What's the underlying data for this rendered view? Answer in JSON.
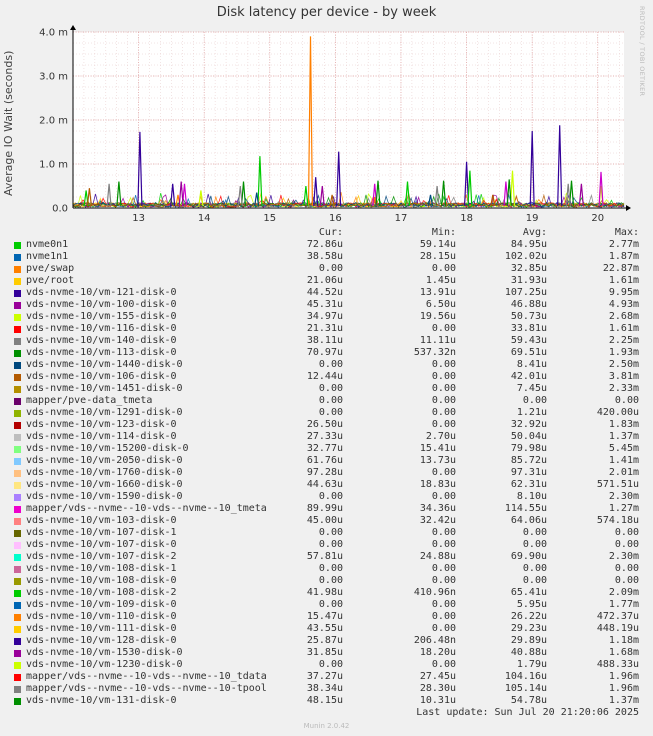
{
  "title": "Disk latency per device - by week",
  "ylabel": "Average IO Wait (seconds)",
  "watermark": "RRDTOOL / TOBI OETIKER",
  "chart_data": {
    "type": "line",
    "title": "Disk latency per device - by week",
    "ylabel": "Average IO Wait (seconds)",
    "ylim": [
      0,
      4.0
    ],
    "y_unit": "m",
    "y_ticks": [
      "0.0",
      "1.0 m",
      "2.0 m",
      "3.0 m",
      "4.0 m"
    ],
    "y_tick_values": [
      0,
      1,
      2,
      3,
      4
    ],
    "x_ticks": [
      "13",
      "14",
      "15",
      "16",
      "17",
      "18",
      "19",
      "20"
    ],
    "xlim": [
      12.0,
      20.4
    ],
    "grid": true,
    "spikes": [
      {
        "series": "pve/swap",
        "color": "#ff7f00",
        "points": [
          [
            15.62,
            3.9
          ],
          [
            13.6,
            0.3
          ],
          [
            16.6,
            0.25
          ]
        ]
      },
      {
        "series": "vds-nvme-10/vm-121-disk-0",
        "color": "#330099",
        "points": [
          [
            13.02,
            1.73
          ],
          [
            19.0,
            1.75
          ],
          [
            19.42,
            1.88
          ],
          [
            16.05,
            1.28
          ],
          [
            18.0,
            1.05
          ],
          [
            13.52,
            0.55
          ],
          [
            15.7,
            0.7
          ]
        ]
      },
      {
        "series": "vds-nvme-10/vm-155-disk-0",
        "color": "#ccff00",
        "points": [
          [
            18.7,
            0.85
          ],
          [
            13.95,
            0.4
          ],
          [
            20.05,
            0.5
          ]
        ]
      },
      {
        "series": "nvme0n1",
        "color": "#00cc00",
        "points": [
          [
            14.85,
            1.18
          ],
          [
            15.55,
            0.5
          ],
          [
            18.05,
            0.85
          ],
          [
            17.1,
            0.6
          ],
          [
            12.2,
            0.4
          ]
        ]
      },
      {
        "series": "mapper/vds--nvme--10-vds--nvme--10_tmeta",
        "color": "#cc00cc",
        "points": [
          [
            20.05,
            0.82
          ],
          [
            16.6,
            0.55
          ],
          [
            13.7,
            0.55
          ],
          [
            18.6,
            0.6
          ]
        ]
      },
      {
        "series": "vds-nvme-10/vm-113-disk-0",
        "color": "#008f00",
        "points": [
          [
            14.6,
            0.6
          ],
          [
            16.65,
            0.62
          ],
          [
            17.65,
            0.62
          ],
          [
            18.65,
            0.65
          ],
          [
            19.6,
            0.62
          ],
          [
            12.7,
            0.6
          ]
        ]
      },
      {
        "series": "vds-nvme-10/vm-1440-disk-0",
        "color": "#00487d",
        "points": [
          [
            14.8,
            0.35
          ],
          [
            17.45,
            0.3
          ]
        ]
      },
      {
        "series": "vds-nvme-10/vm-100-disk-0",
        "color": "#990099",
        "points": [
          [
            13.65,
            0.6
          ],
          [
            15.8,
            0.5
          ],
          [
            19.75,
            0.55
          ]
        ]
      },
      {
        "series": "vds-nvme-10/vm-140-disk-0",
        "color": "#808080",
        "points": [
          [
            12.55,
            0.55
          ],
          [
            14.55,
            0.5
          ],
          [
            17.55,
            0.5
          ],
          [
            19.55,
            0.55
          ]
        ]
      },
      {
        "series": "vds-nvme-10/vm-106-disk-0",
        "color": "#b35a00",
        "points": [
          [
            12.25,
            0.45
          ],
          [
            15.95,
            0.3
          ],
          [
            18.4,
            0.3
          ]
        ]
      }
    ],
    "series": [
      {
        "name": "nvme0n1",
        "color": "#00cc00",
        "cur": "72.86u",
        "min": "59.14u",
        "avg": "84.95u",
        "max": "2.77m"
      },
      {
        "name": "nvme1n1",
        "color": "#0066b3",
        "cur": "38.58u",
        "min": "28.15u",
        "avg": "102.02u",
        "max": "1.87m"
      },
      {
        "name": "pve/swap",
        "color": "#ff8000",
        "cur": "0.00",
        "min": "0.00",
        "avg": "32.85u",
        "max": "22.87m"
      },
      {
        "name": "pve/root",
        "color": "#ffcc00",
        "cur": "21.06u",
        "min": "1.45u",
        "avg": "31.93u",
        "max": "1.61m"
      },
      {
        "name": "vds-nvme-10/vm-121-disk-0",
        "color": "#330099",
        "cur": "44.52u",
        "min": "13.91u",
        "avg": "107.25u",
        "max": "9.95m"
      },
      {
        "name": "vds-nvme-10/vm-100-disk-0",
        "color": "#990099",
        "cur": "45.31u",
        "min": "6.50u",
        "avg": "46.88u",
        "max": "4.93m"
      },
      {
        "name": "vds-nvme-10/vm-155-disk-0",
        "color": "#ccff00",
        "cur": "34.97u",
        "min": "19.56u",
        "avg": "50.73u",
        "max": "2.68m"
      },
      {
        "name": "vds-nvme-10/vm-116-disk-0",
        "color": "#ff0000",
        "cur": "21.31u",
        "min": "0.00",
        "avg": "33.81u",
        "max": "1.61m"
      },
      {
        "name": "vds-nvme-10/vm-140-disk-0",
        "color": "#808080",
        "cur": "38.11u",
        "min": "11.11u",
        "avg": "59.43u",
        "max": "2.25m"
      },
      {
        "name": "vds-nvme-10/vm-113-disk-0",
        "color": "#008f00",
        "cur": "70.97u",
        "min": "537.32n",
        "avg": "69.51u",
        "max": "1.93m"
      },
      {
        "name": "vds-nvme-10/vm-1440-disk-0",
        "color": "#00487d",
        "cur": "0.00",
        "min": "0.00",
        "avg": "8.41u",
        "max": "2.50m"
      },
      {
        "name": "vds-nvme-10/vm-106-disk-0",
        "color": "#b35a00",
        "cur": "12.44u",
        "min": "0.00",
        "avg": "42.01u",
        "max": "3.81m"
      },
      {
        "name": "vds-nvme-10/vm-1451-disk-0",
        "color": "#b38f00",
        "cur": "0.00",
        "min": "0.00",
        "avg": "7.45u",
        "max": "2.33m"
      },
      {
        "name": "mapper/pve-data_tmeta",
        "color": "#6b006b",
        "cur": "0.00",
        "min": "0.00",
        "avg": "0.00",
        "max": "0.00"
      },
      {
        "name": "vds-nvme-10/vm-1291-disk-0",
        "color": "#8fb300",
        "cur": "0.00",
        "min": "0.00",
        "avg": "1.21u",
        "max": "420.00u"
      },
      {
        "name": "vds-nvme-10/vm-123-disk-0",
        "color": "#b30000",
        "cur": "26.50u",
        "min": "0.00",
        "avg": "32.92u",
        "max": "1.83m"
      },
      {
        "name": "vds-nvme-10/vm-114-disk-0",
        "color": "#bebebe",
        "cur": "27.33u",
        "min": "2.70u",
        "avg": "50.04u",
        "max": "1.37m"
      },
      {
        "name": "vds-nvme-10/vm-15200-disk-0",
        "color": "#80ff80",
        "cur": "32.77u",
        "min": "15.41u",
        "avg": "79.98u",
        "max": "5.45m"
      },
      {
        "name": "vds-nvme-10/vm-2050-disk-0",
        "color": "#80c9ff",
        "cur": "61.76u",
        "min": "13.73u",
        "avg": "85.72u",
        "max": "1.41m"
      },
      {
        "name": "vds-nvme-10/vm-1760-disk-0",
        "color": "#ffc080",
        "cur": "97.28u",
        "min": "0.00",
        "avg": "97.31u",
        "max": "2.01m"
      },
      {
        "name": "vds-nvme-10/vm-1660-disk-0",
        "color": "#ffe680",
        "cur": "44.63u",
        "min": "18.83u",
        "avg": "62.31u",
        "max": "571.51u"
      },
      {
        "name": "vds-nvme-10/vm-1590-disk-0",
        "color": "#aa80ff",
        "cur": "0.00",
        "min": "0.00",
        "avg": "8.10u",
        "max": "2.30m"
      },
      {
        "name": "mapper/vds--nvme--10-vds--nvme--10_tmeta",
        "color": "#ee00cc",
        "cur": "89.99u",
        "min": "34.36u",
        "avg": "114.55u",
        "max": "1.27m"
      },
      {
        "name": "vds-nvme-10/vm-103-disk-0",
        "color": "#ff8080",
        "cur": "45.00u",
        "min": "32.42u",
        "avg": "64.06u",
        "max": "574.18u"
      },
      {
        "name": "vds-nvme-10/vm-107-disk-1",
        "color": "#666600",
        "cur": "0.00",
        "min": "0.00",
        "avg": "0.00",
        "max": "0.00"
      },
      {
        "name": "vds-nvme-10/vm-107-disk-0",
        "color": "#ffbfff",
        "cur": "0.00",
        "min": "0.00",
        "avg": "0.00",
        "max": "0.00"
      },
      {
        "name": "vds-nvme-10/vm-107-disk-2",
        "color": "#00ffcc",
        "cur": "57.81u",
        "min": "24.88u",
        "avg": "69.90u",
        "max": "2.30m"
      },
      {
        "name": "vds-nvme-10/vm-108-disk-1",
        "color": "#cc6699",
        "cur": "0.00",
        "min": "0.00",
        "avg": "0.00",
        "max": "0.00"
      },
      {
        "name": "vds-nvme-10/vm-108-disk-0",
        "color": "#999900",
        "cur": "0.00",
        "min": "0.00",
        "avg": "0.00",
        "max": "0.00"
      },
      {
        "name": "vds-nvme-10/vm-108-disk-2",
        "color": "#00cc00",
        "cur": "41.98u",
        "min": "410.96n",
        "avg": "65.41u",
        "max": "2.09m"
      },
      {
        "name": "vds-nvme-10/vm-109-disk-0",
        "color": "#0066b3",
        "cur": "0.00",
        "min": "0.00",
        "avg": "5.95u",
        "max": "1.77m"
      },
      {
        "name": "vds-nvme-10/vm-110-disk-0",
        "color": "#ff8000",
        "cur": "15.47u",
        "min": "0.00",
        "avg": "26.22u",
        "max": "472.37u"
      },
      {
        "name": "vds-nvme-10/vm-111-disk-0",
        "color": "#ffcc00",
        "cur": "43.55u",
        "min": "0.00",
        "avg": "29.23u",
        "max": "448.19u"
      },
      {
        "name": "vds-nvme-10/vm-128-disk-0",
        "color": "#330099",
        "cur": "25.87u",
        "min": "206.48n",
        "avg": "29.89u",
        "max": "1.18m"
      },
      {
        "name": "vds-nvme-10/vm-1530-disk-0",
        "color": "#990099",
        "cur": "31.85u",
        "min": "18.20u",
        "avg": "40.88u",
        "max": "1.68m"
      },
      {
        "name": "vds-nvme-10/vm-1230-disk-0",
        "color": "#ccff00",
        "cur": "0.00",
        "min": "0.00",
        "avg": "1.79u",
        "max": "488.33u"
      },
      {
        "name": "mapper/vds--nvme--10-vds--nvme--10_tdata",
        "color": "#ff0000",
        "cur": "37.27u",
        "min": "27.45u",
        "avg": "104.16u",
        "max": "1.96m"
      },
      {
        "name": "mapper/vds--nvme--10-vds--nvme--10-tpool",
        "color": "#808080",
        "cur": "38.34u",
        "min": "28.30u",
        "avg": "105.14u",
        "max": "1.96m"
      },
      {
        "name": "vds-nvme-10/vm-131-disk-0",
        "color": "#008f00",
        "cur": "48.15u",
        "min": "10.31u",
        "avg": "54.78u",
        "max": "1.37m"
      }
    ]
  },
  "legend_headers": {
    "cur": "Cur:",
    "min": "Min:",
    "avg": "Avg:",
    "max": "Max:"
  },
  "last_update": "Last update: Sun Jul 20 21:20:06 2025",
  "footer": "Munin 2.0.42"
}
